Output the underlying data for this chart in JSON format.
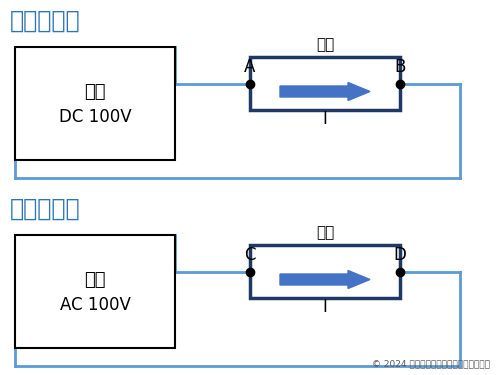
{
  "bg_color": "#ffffff",
  "line_color": "#5b9bd5",
  "box_border_color": "#1f3864",
  "arrow_color": "#4472c4",
  "title1": "直流の場合",
  "title2": "交流の場合",
  "title_color": "#2e75b6",
  "source_label1a": "電源",
  "source_label1b": "DC 100V",
  "source_label2a": "電源",
  "source_label2b": "AC 100V",
  "resistor_label": "抵抗",
  "current_label": "I",
  "point_A": "A",
  "point_B": "B",
  "point_C": "C",
  "point_D": "D",
  "copyright": "© 2024 いろいろいんふぉ，無断使用禁止"
}
